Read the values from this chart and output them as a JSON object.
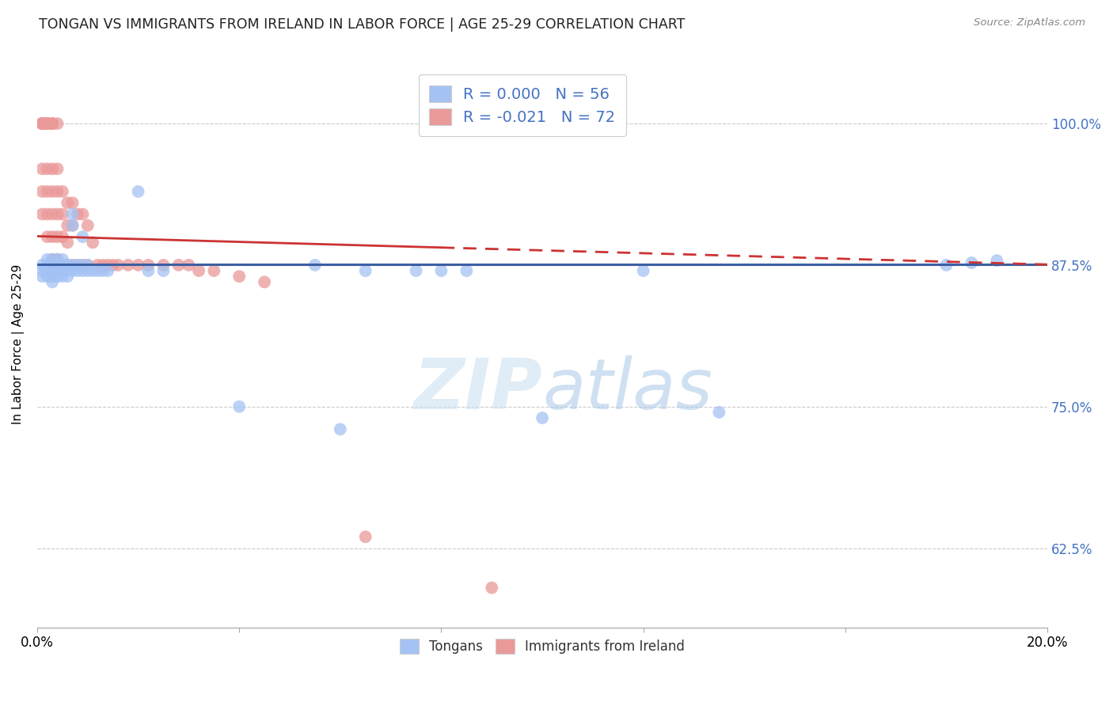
{
  "title": "TONGAN VS IMMIGRANTS FROM IRELAND IN LABOR FORCE | AGE 25-29 CORRELATION CHART",
  "source": "Source: ZipAtlas.com",
  "legend_label1": "Tongans",
  "legend_label2": "Immigrants from Ireland",
  "R1": 0.0,
  "N1": 56,
  "R2": -0.021,
  "N2": 72,
  "blue_color": "#a4c2f4",
  "pink_color": "#ea9999",
  "trend_blue": "#3c5fa3",
  "trend_pink": "#cc3333",
  "yticks": [
    0.625,
    0.75,
    0.875,
    1.0
  ],
  "ytick_labels": [
    "62.5%",
    "75.0%",
    "87.5%",
    "100.0%"
  ],
  "xlim": [
    0.0,
    0.2
  ],
  "ylim": [
    0.555,
    1.055
  ],
  "blue_trend_y0": 0.8755,
  "blue_trend_y1": 0.8755,
  "pink_trend_y0": 0.9005,
  "pink_trend_y1": 0.8755,
  "blue_x": [
    0.001,
    0.001,
    0.001,
    0.002,
    0.002,
    0.002,
    0.002,
    0.003,
    0.003,
    0.003,
    0.003,
    0.003,
    0.004,
    0.004,
    0.004,
    0.004,
    0.004,
    0.005,
    0.005,
    0.005,
    0.005,
    0.005,
    0.006,
    0.006,
    0.006,
    0.007,
    0.007,
    0.007,
    0.007,
    0.008,
    0.008,
    0.009,
    0.009,
    0.009,
    0.01,
    0.01,
    0.011,
    0.012,
    0.013,
    0.014,
    0.02,
    0.022,
    0.025,
    0.04,
    0.055,
    0.06,
    0.065,
    0.075,
    0.08,
    0.085,
    0.1,
    0.12,
    0.135,
    0.18,
    0.185,
    0.19
  ],
  "blue_y": [
    0.875,
    0.87,
    0.865,
    0.88,
    0.875,
    0.87,
    0.865,
    0.88,
    0.875,
    0.87,
    0.865,
    0.86,
    0.88,
    0.875,
    0.875,
    0.87,
    0.865,
    0.88,
    0.875,
    0.87,
    0.87,
    0.865,
    0.875,
    0.87,
    0.865,
    0.92,
    0.91,
    0.875,
    0.87,
    0.875,
    0.87,
    0.9,
    0.875,
    0.87,
    0.875,
    0.87,
    0.87,
    0.87,
    0.87,
    0.87,
    0.94,
    0.87,
    0.87,
    0.75,
    0.875,
    0.73,
    0.87,
    0.87,
    0.87,
    0.87,
    0.74,
    0.87,
    0.745,
    0.875,
    0.877,
    0.879
  ],
  "pink_x": [
    0.001,
    0.001,
    0.001,
    0.001,
    0.001,
    0.001,
    0.001,
    0.001,
    0.001,
    0.001,
    0.001,
    0.002,
    0.002,
    0.002,
    0.002,
    0.002,
    0.002,
    0.002,
    0.002,
    0.002,
    0.002,
    0.003,
    0.003,
    0.003,
    0.003,
    0.003,
    0.003,
    0.003,
    0.003,
    0.003,
    0.004,
    0.004,
    0.004,
    0.004,
    0.004,
    0.004,
    0.004,
    0.005,
    0.005,
    0.005,
    0.005,
    0.006,
    0.006,
    0.006,
    0.006,
    0.007,
    0.007,
    0.007,
    0.008,
    0.008,
    0.009,
    0.009,
    0.01,
    0.01,
    0.011,
    0.012,
    0.013,
    0.014,
    0.015,
    0.016,
    0.018,
    0.02,
    0.022,
    0.025,
    0.028,
    0.03,
    0.032,
    0.035,
    0.04,
    0.045,
    0.065,
    0.09
  ],
  "pink_y": [
    1.0,
    1.0,
    1.0,
    1.0,
    1.0,
    1.0,
    1.0,
    1.0,
    0.96,
    0.94,
    0.92,
    1.0,
    1.0,
    1.0,
    1.0,
    1.0,
    1.0,
    0.96,
    0.94,
    0.92,
    0.9,
    1.0,
    1.0,
    1.0,
    0.96,
    0.94,
    0.92,
    0.9,
    0.88,
    0.87,
    1.0,
    0.96,
    0.94,
    0.92,
    0.9,
    0.88,
    0.87,
    0.94,
    0.92,
    0.9,
    0.875,
    0.93,
    0.91,
    0.895,
    0.875,
    0.93,
    0.91,
    0.875,
    0.92,
    0.875,
    0.92,
    0.875,
    0.91,
    0.875,
    0.895,
    0.875,
    0.875,
    0.875,
    0.875,
    0.875,
    0.875,
    0.875,
    0.875,
    0.875,
    0.875,
    0.875,
    0.87,
    0.87,
    0.865,
    0.86,
    0.635,
    0.59
  ]
}
